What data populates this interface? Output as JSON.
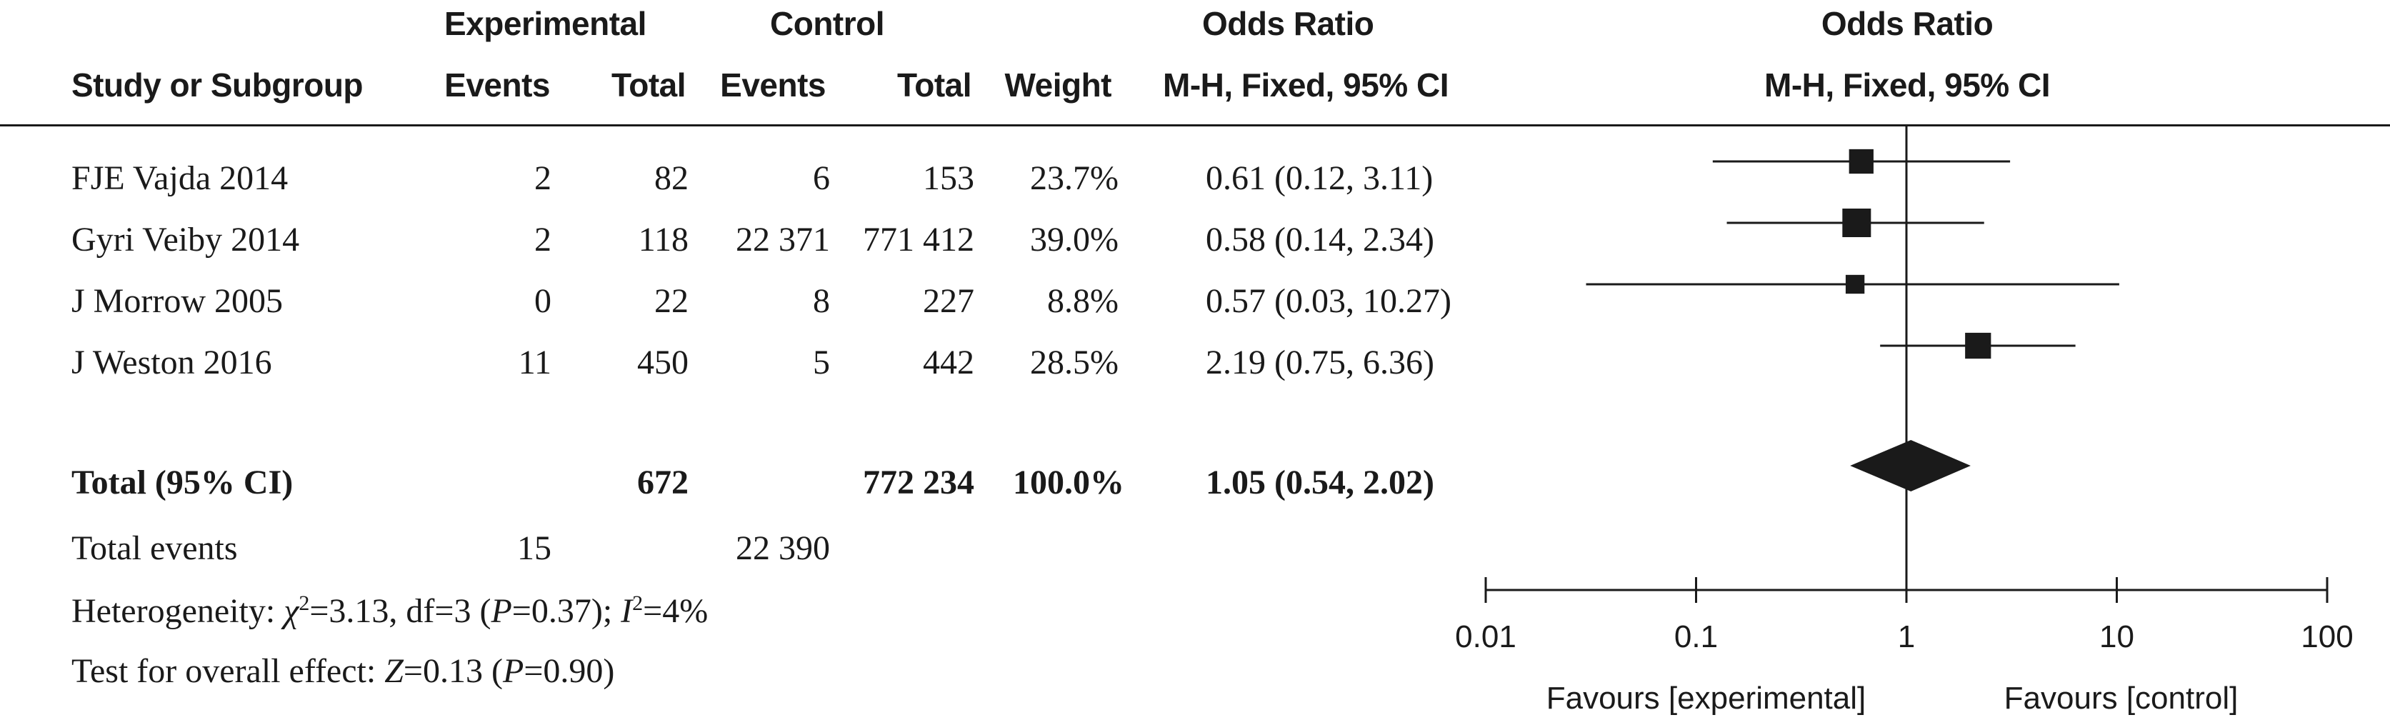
{
  "headers": {
    "group_experimental": "Experimental",
    "group_control": "Control",
    "group_odds_ratio": "Odds Ratio",
    "study": "Study or Subgroup",
    "exp_events": "Events",
    "exp_total": "Total",
    "ctl_events": "Events",
    "ctl_total": "Total",
    "weight": "Weight",
    "method": "M-H, Fixed, 95% CI",
    "plot_group": "Odds Ratio",
    "plot_method": "M-H, Fixed, 95% CI"
  },
  "studies": [
    {
      "name": "FJE Vajda 2014",
      "exp_events": "2",
      "exp_total": "82",
      "ctl_events": "6",
      "ctl_total": "153",
      "weight": "23.7%",
      "ci": "0.61 (0.12, 3.11)"
    },
    {
      "name": "Gyri Veiby 2014",
      "exp_events": "2",
      "exp_total": "118",
      "ctl_events": "22 371",
      "ctl_total": "771 412",
      "weight": "39.0%",
      "ci": "0.58 (0.14, 2.34)"
    },
    {
      "name": "J Morrow 2005",
      "exp_events": "0",
      "exp_total": "22",
      "ctl_events": "8",
      "ctl_total": "227",
      "weight": "8.8%",
      "ci": "0.57 (0.03, 10.27)"
    },
    {
      "name": "J Weston 2016",
      "exp_events": "11",
      "exp_total": "450",
      "ctl_events": "5",
      "ctl_total": "442",
      "weight": "28.5%",
      "ci": "2.19 (0.75, 6.36)"
    }
  ],
  "total": {
    "label": "Total (95% CI)",
    "exp_total": "672",
    "ctl_total": "772 234",
    "weight": "100.0%",
    "ci": "1.05 (0.54, 2.02)"
  },
  "total_events": {
    "label": "Total events",
    "exp_events": "15",
    "ctl_events": "22 390"
  },
  "heterogeneity": {
    "prefix": "Heterogeneity: ",
    "chi": "χ",
    "sq1": "2",
    "stat": "=3.13, df=3 (",
    "p": "P",
    "pval": "=0.37); ",
    "i": "I",
    "sq2": "2",
    "ival": "=4%"
  },
  "overall_effect": {
    "prefix": "Test for overall effect: ",
    "z": "Z",
    "zval": "=0.13 (",
    "p": "P",
    "pval": "=0.90)"
  },
  "chart_data": {
    "type": "forest",
    "scale": "log",
    "xlim": [
      0.01,
      100
    ],
    "reference_line": 1,
    "ticks": [
      0.01,
      0.1,
      1,
      10,
      100
    ],
    "tick_labels": [
      "0.01",
      "0.1",
      "1",
      "10",
      "100"
    ],
    "xlabel_left": "Favours [experimental]",
    "xlabel_right": "Favours [control]",
    "points": [
      {
        "study": "FJE Vajda 2014",
        "or": 0.61,
        "lo": 0.12,
        "hi": 3.11,
        "weight": 23.7
      },
      {
        "study": "Gyri Veiby 2014",
        "or": 0.58,
        "lo": 0.14,
        "hi": 2.34,
        "weight": 39.0
      },
      {
        "study": "J Morrow 2005",
        "or": 0.57,
        "lo": 0.03,
        "hi": 10.27,
        "weight": 8.8
      },
      {
        "study": "J Weston 2016",
        "or": 2.19,
        "lo": 0.75,
        "hi": 6.36,
        "weight": 28.5
      }
    ],
    "pooled": {
      "or": 1.05,
      "lo": 0.54,
      "hi": 2.02
    }
  }
}
